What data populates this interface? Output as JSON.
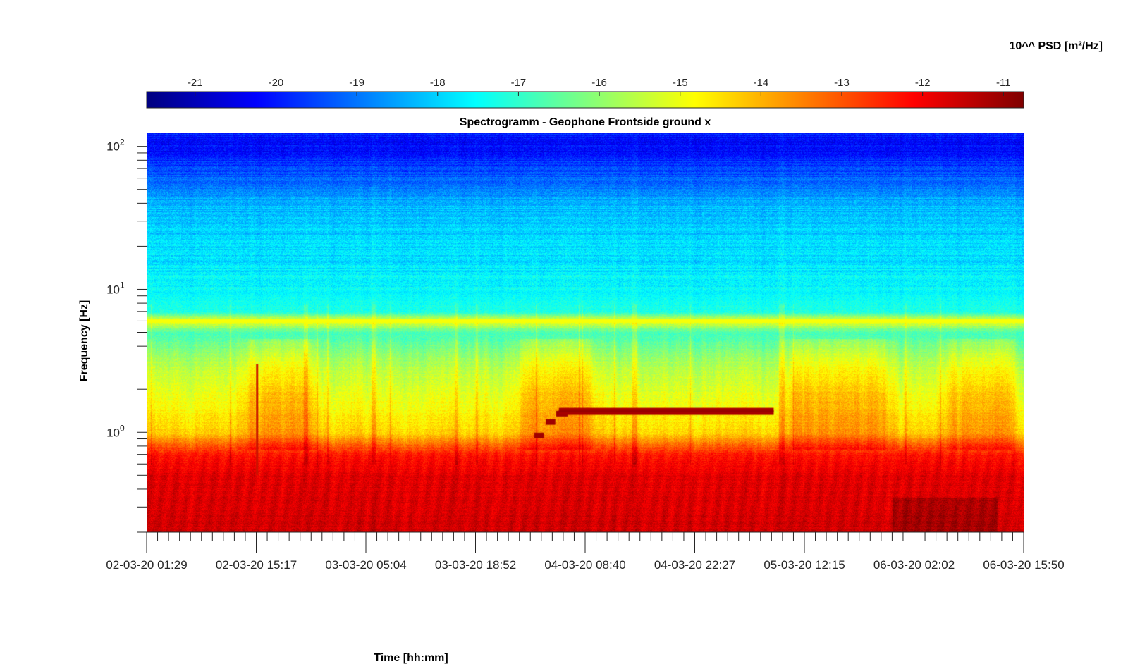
{
  "chart_data": {
    "type": "heatmap",
    "title": "Spectrogramm - Geophone Frontside ground x",
    "xlabel": "Time [hh:mm]",
    "ylabel": "Frequency [Hz]",
    "x_ticks": [
      "02-03-20 01:29",
      "02-03-20 15:17",
      "03-03-20 05:04",
      "03-03-20 18:52",
      "04-03-20 08:40",
      "04-03-20 22:27",
      "05-03-20 12:15",
      "06-03-20 02:02",
      "06-03-20 15:50"
    ],
    "y_scale": "log",
    "y_ticks": [
      {
        "base": "10",
        "exp": "0",
        "value": 1
      },
      {
        "base": "10",
        "exp": "1",
        "value": 10
      },
      {
        "base": "10",
        "exp": "2",
        "value": 100
      }
    ],
    "ylim": [
      0.2,
      125
    ],
    "colorbar": {
      "label": "10^^ PSD [m²/Hz]",
      "colormap": "jet",
      "ticks": [
        "-21",
        "-20",
        "-19",
        "-18",
        "-17",
        "-16",
        "-15",
        "-14",
        "-13",
        "-12",
        "-11"
      ],
      "range": [
        -21.6,
        -10.75
      ]
    },
    "psd_profile_by_frequency": [
      {
        "f": 0.2,
        "log_psd": -11.6
      },
      {
        "f": 0.5,
        "log_psd": -11.8
      },
      {
        "f": 0.7,
        "log_psd": -12.3
      },
      {
        "f": 1.0,
        "log_psd": -14.3
      },
      {
        "f": 1.5,
        "log_psd": -14.8
      },
      {
        "f": 3.0,
        "log_psd": -15.6
      },
      {
        "f": 5.0,
        "log_psd": -16.8
      },
      {
        "f": 6.0,
        "log_psd": -14.9
      },
      {
        "f": 7.0,
        "log_psd": -17.2
      },
      {
        "f": 10.0,
        "log_psd": -17.6
      },
      {
        "f": 20.0,
        "log_psd": -17.9
      },
      {
        "f": 40.0,
        "log_psd": -18.3
      },
      {
        "f": 60.0,
        "log_psd": -19.3
      },
      {
        "f": 100.0,
        "log_psd": -20.2
      },
      {
        "f": 125.0,
        "log_psd": -19.9
      }
    ],
    "features": {
      "line_6hz": {
        "f": 6.0,
        "log_psd": -14.9
      },
      "narrowband_line": {
        "f": 1.4,
        "log_psd": -11.2,
        "t_start": 0.47,
        "t_end": 0.715
      },
      "precursor_steps": [
        {
          "f": 0.95,
          "t_start": 0.442,
          "t_end": 0.453
        },
        {
          "f": 1.18,
          "t_start": 0.455,
          "t_end": 0.466
        },
        {
          "f": 1.35,
          "t_start": 0.467,
          "t_end": 0.48
        }
      ],
      "transient_spike": {
        "t": 0.126,
        "f_min": 0.5,
        "f_max": 3.0
      },
      "active_periods": [
        [
          0.1,
          0.2
        ],
        [
          0.415,
          0.52
        ],
        [
          0.72,
          0.86
        ],
        [
          0.9,
          1.0
        ]
      ]
    }
  }
}
